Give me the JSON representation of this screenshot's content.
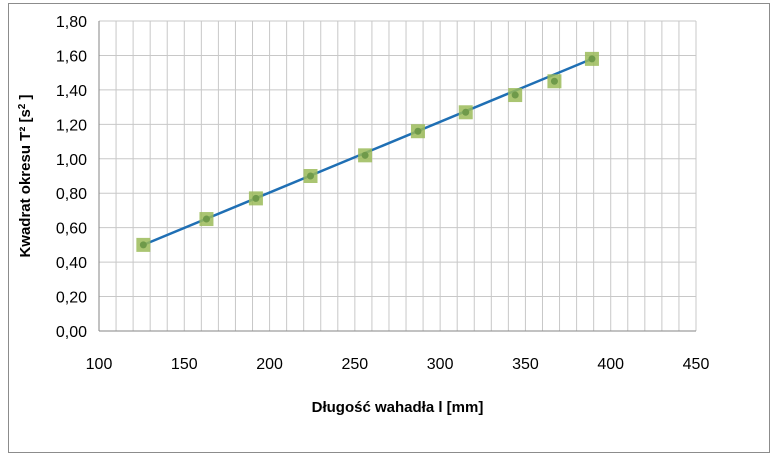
{
  "chart_data": {
    "type": "scatter",
    "xlabel": "Długość wahadła l [mm]",
    "ylabel_main": "Kwadrat okresu T² [s",
    "ylabel_sup": "2",
    "ylabel_end": " ]",
    "xlim": [
      100,
      450
    ],
    "ylim": [
      0,
      1.8
    ],
    "x_ticks": [
      "100",
      "150",
      "200",
      "250",
      "300",
      "350",
      "400",
      "450"
    ],
    "y_ticks": [
      "0,00",
      "0,20",
      "0,40",
      "0,60",
      "0,80",
      "1,00",
      "1,20",
      "1,40",
      "1,60",
      "1,80"
    ],
    "grid": true,
    "points": [
      {
        "x": 126,
        "y": 0.5
      },
      {
        "x": 163,
        "y": 0.65
      },
      {
        "x": 192,
        "y": 0.77
      },
      {
        "x": 224,
        "y": 0.9
      },
      {
        "x": 256,
        "y": 1.02
      },
      {
        "x": 287,
        "y": 1.16
      },
      {
        "x": 315,
        "y": 1.27
      },
      {
        "x": 344,
        "y": 1.37
      },
      {
        "x": 367,
        "y": 1.45
      },
      {
        "x": 389,
        "y": 1.58
      }
    ],
    "trendline": {
      "x": [
        126,
        389
      ],
      "y": [
        0.5,
        1.58
      ]
    },
    "marker_color": "#9bbb59",
    "marker_inner_color": "#6f9a4a",
    "line_color": "#1f6fb4"
  }
}
